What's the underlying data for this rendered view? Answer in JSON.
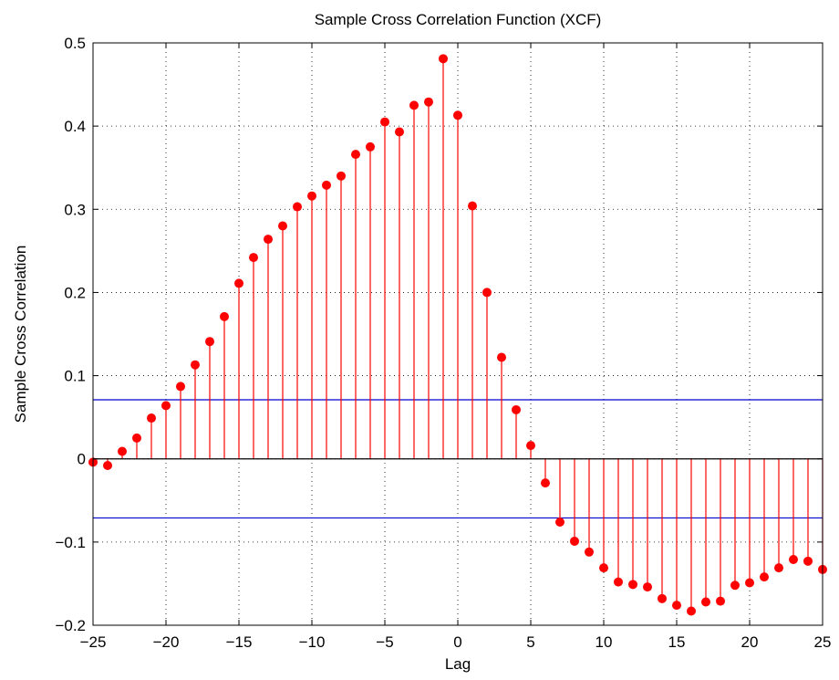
{
  "chart_data": {
    "type": "stem",
    "title": "Sample Cross Correlation Function (XCF)",
    "xlabel": "Lag",
    "ylabel": "Sample Cross Correlation",
    "xlim": [
      -25,
      25
    ],
    "ylim": [
      -0.2,
      0.5
    ],
    "xticks": [
      -25,
      -20,
      -15,
      -10,
      -5,
      0,
      5,
      10,
      15,
      20,
      25
    ],
    "yticks": [
      -0.2,
      -0.1,
      0,
      0.1,
      0.2,
      0.3,
      0.4,
      0.5
    ],
    "xtick_labels": [
      "−25",
      "−20",
      "−15",
      "−10",
      "−5",
      "0",
      "5",
      "10",
      "15",
      "20",
      "25"
    ],
    "ytick_labels": [
      "−0.2",
      "−0.1",
      "0",
      "0.1",
      "0.2",
      "0.3",
      "0.4",
      "0.5"
    ],
    "grid": true,
    "stem_color": "#ff0000",
    "bound_color": "#0000cc",
    "confidence_bounds": [
      0.071,
      -0.071
    ],
    "lags": [
      -25,
      -24,
      -23,
      -22,
      -21,
      -20,
      -19,
      -18,
      -17,
      -16,
      -15,
      -14,
      -13,
      -12,
      -11,
      -10,
      -9,
      -8,
      -7,
      -6,
      -5,
      -4,
      -3,
      -2,
      -1,
      0,
      1,
      2,
      3,
      4,
      5,
      6,
      7,
      8,
      9,
      10,
      11,
      12,
      13,
      14,
      15,
      16,
      17,
      18,
      19,
      20,
      21,
      22,
      23,
      24,
      25
    ],
    "values": [
      -0.004,
      -0.008,
      0.009,
      0.025,
      0.049,
      0.064,
      0.087,
      0.113,
      0.141,
      0.171,
      0.211,
      0.242,
      0.264,
      0.28,
      0.303,
      0.316,
      0.329,
      0.34,
      0.366,
      0.375,
      0.405,
      0.393,
      0.425,
      0.429,
      0.481,
      0.413,
      0.304,
      0.2,
      0.122,
      0.059,
      0.016,
      -0.029,
      -0.076,
      -0.099,
      -0.112,
      -0.131,
      -0.148,
      -0.151,
      -0.154,
      -0.168,
      -0.176,
      -0.183,
      -0.172,
      -0.171,
      -0.152,
      -0.149,
      -0.142,
      -0.131,
      -0.121,
      -0.123,
      -0.133
    ]
  }
}
